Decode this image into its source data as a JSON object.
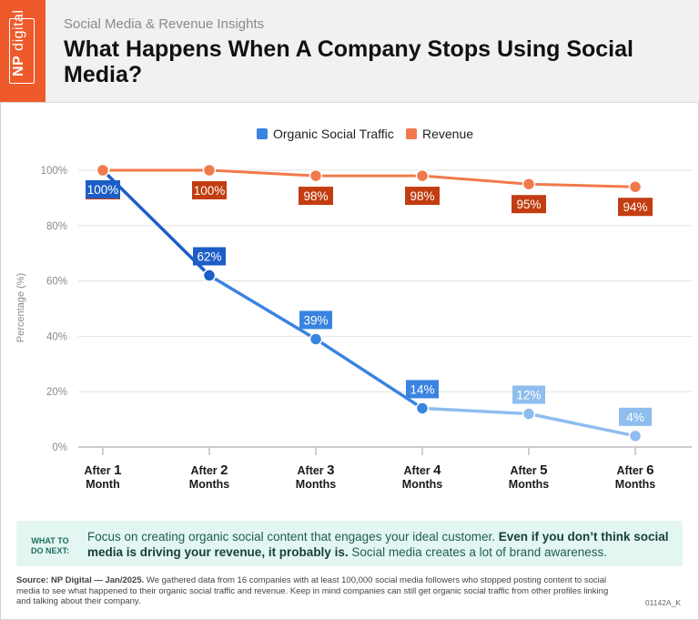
{
  "header": {
    "kicker": "Social Media & Revenue Insights",
    "title": "What Happens When A Company Stops Using Social Media?",
    "logo_np": "NP",
    "logo_digital": "digital"
  },
  "colors": {
    "orange": "#ef5a2b",
    "revenue_line": "#f07a4d",
    "revenue_label": "#c23d12",
    "traffic_dark": "#1d5ec6",
    "traffic_mid": "#3a83e0",
    "traffic_light": "#8fbdee"
  },
  "chart_data": {
    "type": "line",
    "title": "",
    "xlabel": "",
    "ylabel": "Percentage (%)",
    "ylim": [
      0,
      100
    ],
    "yticks": [
      {
        "value": 0,
        "label": "0%"
      },
      {
        "value": 20,
        "label": "20%"
      },
      {
        "value": 40,
        "label": "40%"
      },
      {
        "value": 60,
        "label": "60%"
      },
      {
        "value": 80,
        "label": "80%"
      },
      {
        "value": 100,
        "label": "100%"
      }
    ],
    "categories": [
      {
        "pre": "After ",
        "num": "1",
        "unit": "Month"
      },
      {
        "pre": "After ",
        "num": "2",
        "unit": "Months"
      },
      {
        "pre": "After ",
        "num": "3",
        "unit": "Months"
      },
      {
        "pre": "After ",
        "num": "4",
        "unit": "Months"
      },
      {
        "pre": "After ",
        "num": "5",
        "unit": "Months"
      },
      {
        "pre": "After ",
        "num": "6",
        "unit": "Months"
      }
    ],
    "legend_position": "top-center",
    "series": [
      {
        "name": "Organic Social Traffic",
        "key": "traffic",
        "values": [
          100,
          62,
          39,
          14,
          12,
          4
        ],
        "labels": [
          "100%",
          "62%",
          "39%",
          "14%",
          "12%",
          "4%"
        ]
      },
      {
        "name": "Revenue",
        "key": "revenue",
        "values": [
          100,
          100,
          98,
          98,
          95,
          94
        ],
        "labels": [
          "100%",
          "100%",
          "98%",
          "98%",
          "95%",
          "94%"
        ]
      }
    ]
  },
  "banner": {
    "tag_line1": "WHAT TO",
    "tag_line2": "DO NEXT:",
    "text_a": "Focus on creating organic social content that engages your ideal customer. ",
    "text_b": "Even if you don’t think social media is driving your revenue, it probably is.",
    "text_c": " Social media creates a lot of brand awareness."
  },
  "footer": {
    "source_label": "Source: NP Digital — Jan/2025.",
    "source_text": " We gathered data from 16 companies with at least 100,000 social media followers who stopped posting content to social media to see what happened to their organic social traffic and revenue. Keep in mind companies can still get organic social traffic from other profiles linking and talking about their company.",
    "code": "01142A_K"
  }
}
